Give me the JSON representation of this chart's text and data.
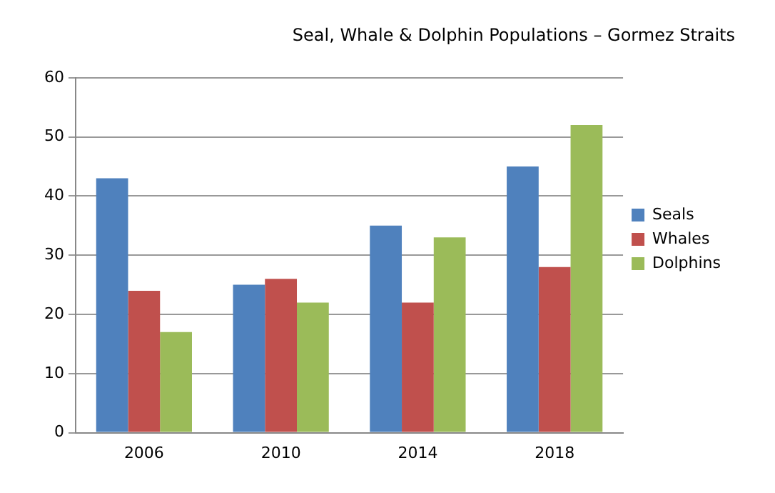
{
  "chart_data": {
    "type": "bar",
    "title": "Seal, Whale & Dolphin Populations – Gormez Straits",
    "categories": [
      "2006",
      "2010",
      "2014",
      "2018"
    ],
    "series": [
      {
        "name": "Seals",
        "color": "#4f81bd",
        "values": [
          43,
          25,
          35,
          45
        ]
      },
      {
        "name": "Whales",
        "color": "#c0504d",
        "values": [
          24,
          26,
          22,
          28
        ]
      },
      {
        "name": "Dolphins",
        "color": "#9bbb59",
        "values": [
          17,
          22,
          33,
          52
        ]
      }
    ],
    "ylim": [
      0,
      60
    ],
    "yticks": [
      0,
      10,
      20,
      30,
      40,
      50,
      60
    ],
    "grid": "y",
    "legend": "right"
  }
}
